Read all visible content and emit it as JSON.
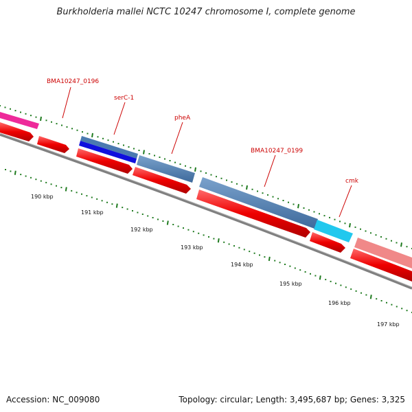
{
  "title": "Burkholderia mallei NCTC 10247 chromosome I, complete genome",
  "footer": {
    "accession": "Accession: NC_009080",
    "summary": "Topology: circular; Length: 3,495,687 bp; Genes: 3,325"
  },
  "colors": {
    "cds_forward": "#ee0000",
    "cds_reverse": "#ee0000",
    "backbone": "#808080",
    "tick": "#1e7a1e",
    "label": "#cc0000",
    "gene_steelblue": "#4a7ab0",
    "gene_blue": "#1010dd",
    "gene_cyan": "#22c8ee",
    "gene_magenta": "#ee2a9a",
    "gene_pink": "#f08888"
  },
  "kbp_labels": [
    "190 kbp",
    "191 kbp",
    "192 kbp",
    "193 kbp",
    "194 kbp",
    "195 kbp",
    "196 kbp",
    "197 kbp"
  ],
  "gene_labels": [
    "BMA10247_0196",
    "serC-1",
    "pheA",
    "BMA10247_0199",
    "cmk"
  ]
}
